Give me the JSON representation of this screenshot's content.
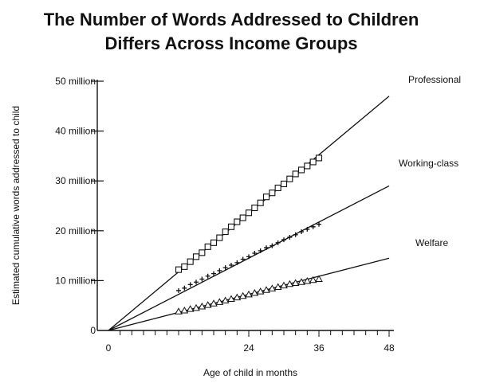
{
  "chart_data": {
    "type": "line",
    "title_line1": "The Number of Words Addressed to Children",
    "title_line2": "Differs Across Income Groups",
    "xlabel": "Age of child in months",
    "ylabel": "Estimated cumulative words addressed to child",
    "xlim": [
      0,
      48
    ],
    "ylim": [
      0,
      50
    ],
    "xticks": [
      0,
      24,
      36,
      48
    ],
    "xtick_labels": [
      "0",
      "24",
      "36",
      "48"
    ],
    "xminor_step": 2,
    "yticks": [
      0,
      10,
      20,
      30,
      40,
      50
    ],
    "ytick_labels": [
      "0",
      "10 million",
      "20 million",
      "30 million",
      "40 million",
      "50 million"
    ],
    "series": [
      {
        "name": "Professional",
        "marker": "square",
        "fit": [
          [
            0,
            0
          ],
          [
            48,
            47
          ]
        ],
        "x": [
          12,
          13,
          14,
          15,
          16,
          17,
          18,
          19,
          20,
          21,
          22,
          23,
          24,
          25,
          26,
          27,
          28,
          29,
          30,
          31,
          32,
          33,
          34,
          35,
          36
        ],
        "y": [
          12.2,
          12.8,
          13.8,
          14.8,
          15.6,
          16.8,
          17.6,
          18.6,
          19.8,
          20.8,
          21.8,
          22.6,
          23.6,
          24.6,
          25.6,
          26.8,
          27.6,
          28.6,
          29.4,
          30.4,
          31.4,
          32.2,
          33.0,
          33.8,
          34.6
        ]
      },
      {
        "name": "Working-class",
        "marker": "plus",
        "fit": [
          [
            0,
            0
          ],
          [
            48,
            29
          ]
        ],
        "x": [
          12,
          13,
          14,
          15,
          16,
          17,
          18,
          19,
          20,
          21,
          22,
          23,
          24,
          25,
          26,
          27,
          28,
          29,
          30,
          31,
          32,
          33,
          34,
          35,
          36
        ],
        "y": [
          8.0,
          8.5,
          9.2,
          9.7,
          10.3,
          10.9,
          11.4,
          12.0,
          12.6,
          13.1,
          13.6,
          14.3,
          14.8,
          15.5,
          16.0,
          16.6,
          17.0,
          17.6,
          18.2,
          18.7,
          19.2,
          19.8,
          20.3,
          20.8,
          21.3
        ]
      },
      {
        "name": "Welfare",
        "marker": "triangle",
        "fit": [
          [
            0,
            0
          ],
          [
            48,
            14.5
          ]
        ],
        "x": [
          12,
          13,
          14,
          15,
          16,
          17,
          18,
          19,
          20,
          21,
          22,
          23,
          24,
          25,
          26,
          27,
          28,
          29,
          30,
          31,
          32,
          33,
          34,
          35,
          36
        ],
        "y": [
          3.8,
          4.0,
          4.3,
          4.5,
          4.8,
          5.1,
          5.4,
          5.7,
          6.0,
          6.3,
          6.6,
          6.9,
          7.2,
          7.5,
          7.8,
          8.1,
          8.4,
          8.7,
          9.0,
          9.3,
          9.5,
          9.7,
          9.9,
          10.1,
          10.3
        ]
      }
    ]
  }
}
